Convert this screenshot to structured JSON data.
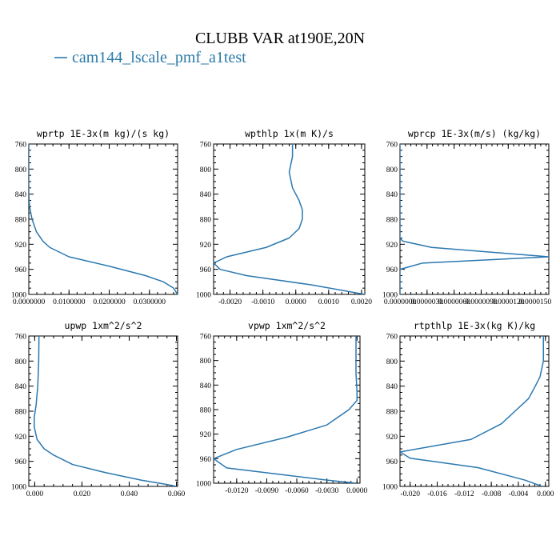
{
  "figure": {
    "title": "CLUBB VAR at190E,20N",
    "legend_label": "cam144_lscale_pmf_a1test",
    "legend_color": "#2a7aa8",
    "line_color": "#2b78b0"
  },
  "chart_data": [
    {
      "type": "line",
      "title": "wprtp  1E-3x(m kg)/(s kg)",
      "xlim": [
        0,
        0.037
      ],
      "ylim": [
        760,
        1000
      ],
      "y_inverted": true,
      "xticks": [
        0,
        0.01,
        0.02,
        0.03
      ],
      "xtick_labels": [
        "0.0000000",
        "0.0100000",
        "0.0200000",
        "0.0300000"
      ],
      "yticks": [
        760,
        800,
        840,
        880,
        920,
        960,
        1000
      ],
      "series": [
        {
          "x": [
            0.0,
            0.0,
            0.0,
            0.0002,
            0.0008,
            0.0019,
            0.0035,
            0.0052,
            0.01,
            0.02,
            0.029,
            0.0335,
            0.036,
            0.037
          ],
          "y": [
            760,
            800,
            840,
            860,
            880,
            900,
            915,
            925,
            940,
            955,
            970,
            980,
            990,
            1000
          ]
        }
      ]
    },
    {
      "type": "line",
      "title": "wpthlp  1x(m K)/s",
      "xlim": [
        -0.0025,
        0.0021
      ],
      "ylim": [
        760,
        1000
      ],
      "y_inverted": true,
      "xticks": [
        -0.002,
        -0.001,
        0,
        0.001,
        0.002
      ],
      "xtick_labels": [
        "-0.0020",
        "-0.0010",
        "0.0000",
        "0.0010",
        "0.0020"
      ],
      "yticks": [
        760,
        800,
        840,
        880,
        920,
        960,
        1000
      ],
      "series": [
        {
          "x": [
            -0.0001,
            -0.0001,
            -0.0002,
            -0.0001,
            0.0001,
            0.0002,
            0.0002,
            0.0001,
            -0.0002,
            -0.0009,
            -0.0021,
            -0.0025,
            -0.0023,
            -0.0015,
            0.0005,
            0.0021
          ],
          "y": [
            755,
            780,
            805,
            830,
            850,
            865,
            880,
            895,
            910,
            925,
            940,
            950,
            960,
            970,
            985,
            1000
          ]
        }
      ]
    },
    {
      "type": "line",
      "title": "wprcp  1E-3x(m/s) (kg/kg)",
      "xlim": [
        0,
        1.65e-05
      ],
      "ylim": [
        760,
        1000
      ],
      "y_inverted": true,
      "xticks": [
        0,
        3e-06,
        6e-06,
        9e-06,
        1.2e-05,
        1.5e-05
      ],
      "xtick_labels": [
        "0.0000000",
        "0.0000030",
        "0.0000060",
        "0.0000090",
        "0.0000120",
        "0.0000150"
      ],
      "yticks": [
        760,
        800,
        840,
        880,
        920,
        960,
        1000
      ],
      "series": [
        {
          "x": [
            0,
            0,
            0,
            3e-07,
            3.5e-06,
            1.65e-05,
            2.5e-06,
            0,
            0
          ],
          "y": [
            760,
            880,
            910,
            915,
            925,
            940,
            950,
            960,
            1000
          ]
        }
      ]
    },
    {
      "type": "line",
      "title": "upwp  1xm^2/s^2",
      "xlim": [
        -0.0025,
        0.0605
      ],
      "ylim": [
        760,
        1000
      ],
      "y_inverted": true,
      "xticks": [
        0,
        0.02,
        0.04,
        0.06
      ],
      "xtick_labels": [
        "0.000",
        "0.020",
        "0.040",
        "0.060"
      ],
      "yticks": [
        760,
        800,
        840,
        880,
        920,
        960,
        1000
      ],
      "series": [
        {
          "x": [
            0.0018,
            0.0017,
            0.0013,
            0.0006,
            -0.0002,
            -0.0002,
            0.001,
            0.004,
            0.008,
            0.016,
            0.03,
            0.045,
            0.056,
            0.06
          ],
          "y": [
            760,
            800,
            840,
            870,
            890,
            905,
            925,
            940,
            950,
            965,
            978,
            990,
            997,
            1000
          ]
        }
      ]
    },
    {
      "type": "line",
      "title": "vpwp  1xm^2/s^2",
      "xlim": [
        -0.0143,
        0.0003
      ],
      "ylim": [
        760,
        1000
      ],
      "y_inverted": true,
      "xticks": [
        -0.012,
        -0.009,
        -0.006,
        -0.003,
        0
      ],
      "xtick_labels": [
        "-0.0120",
        "-0.0090",
        "-0.0060",
        "-0.0030",
        "0.0000"
      ],
      "yticks": [
        760,
        800,
        840,
        880,
        920,
        960,
        1000
      ],
      "series": [
        {
          "x": [
            -0.0001,
            -0.0001,
            0,
            0,
            -0.0008,
            -0.003,
            -0.007,
            -0.012,
            -0.0143,
            -0.013,
            -0.008,
            -0.003,
            -0.0001
          ],
          "y": [
            760,
            820,
            850,
            865,
            880,
            905,
            925,
            945,
            960,
            975,
            985,
            995,
            1000
          ]
        }
      ]
    },
    {
      "type": "line",
      "title": "rtpthlp  1E-3x(kg K)/kg",
      "xlim": [
        -0.0215,
        0.0005
      ],
      "ylim": [
        760,
        1000
      ],
      "y_inverted": true,
      "xticks": [
        -0.02,
        -0.016,
        -0.012,
        -0.008,
        -0.004,
        0
      ],
      "xtick_labels": [
        "-0.020",
        "-0.016",
        "-0.012",
        "-0.008",
        "-0.004",
        "0.000"
      ],
      "yticks": [
        760,
        800,
        840,
        880,
        920,
        960,
        1000
      ],
      "series": [
        {
          "x": [
            -0.0003,
            -0.0003,
            -0.0008,
            -0.0015,
            -0.0025,
            -0.0045,
            -0.0065,
            -0.011,
            -0.0215,
            -0.02,
            -0.01,
            -0.003,
            -0.0005
          ],
          "y": [
            760,
            800,
            825,
            840,
            860,
            880,
            900,
            925,
            945,
            955,
            970,
            990,
            1000
          ]
        }
      ]
    }
  ]
}
